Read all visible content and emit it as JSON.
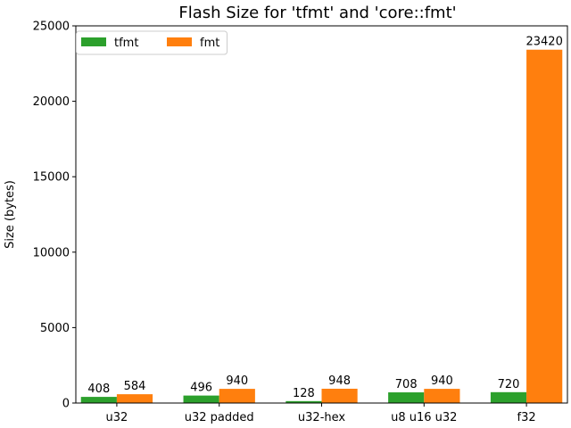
{
  "chart_data": {
    "type": "bar",
    "title": "Flash Size for 'tfmt' and 'core::fmt'",
    "xlabel": "",
    "ylabel": "Size (bytes)",
    "ylim": [
      0,
      25000
    ],
    "yticks": [
      0,
      5000,
      10000,
      15000,
      20000,
      25000
    ],
    "categories": [
      "u32",
      "u32 padded",
      "u32-hex",
      "u8 u16 u32",
      "f32"
    ],
    "series": [
      {
        "name": "tfmt",
        "color": "#2ca02c",
        "values": [
          408,
          496,
          128,
          708,
          720
        ]
      },
      {
        "name": "fmt",
        "color": "#ff7f0e",
        "values": [
          584,
          940,
          948,
          940,
          23420
        ]
      }
    ],
    "legend": {
      "placement": "top-left",
      "ncol": 2
    },
    "grid": false
  }
}
